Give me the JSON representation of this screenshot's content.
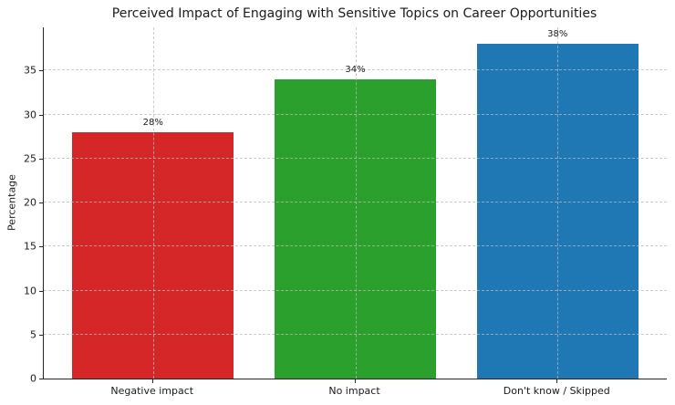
{
  "chart_data": {
    "type": "bar",
    "title": "Perceived Impact of Engaging with Sensitive Topics on Career Opportunities",
    "xlabel": "",
    "ylabel": "Percentage",
    "categories": [
      "Negative impact",
      "No impact",
      "Don't know / Skipped"
    ],
    "values": [
      28,
      34,
      38
    ],
    "bar_labels": [
      "28%",
      "34%",
      "38%"
    ],
    "bar_colors": [
      "#d62728",
      "#2ca02c",
      "#1f77b4"
    ],
    "ylim": [
      0,
      39.9
    ],
    "yticks": [
      0,
      5,
      10,
      15,
      20,
      25,
      30,
      35
    ],
    "grid": "dashed gridlines on both axes, drawn above bars",
    "legend": "none",
    "background_color": "#ffffff",
    "text_color": "#1a1a1a",
    "spine_color": "#262626",
    "grid_color": "#b9b9b9"
  }
}
